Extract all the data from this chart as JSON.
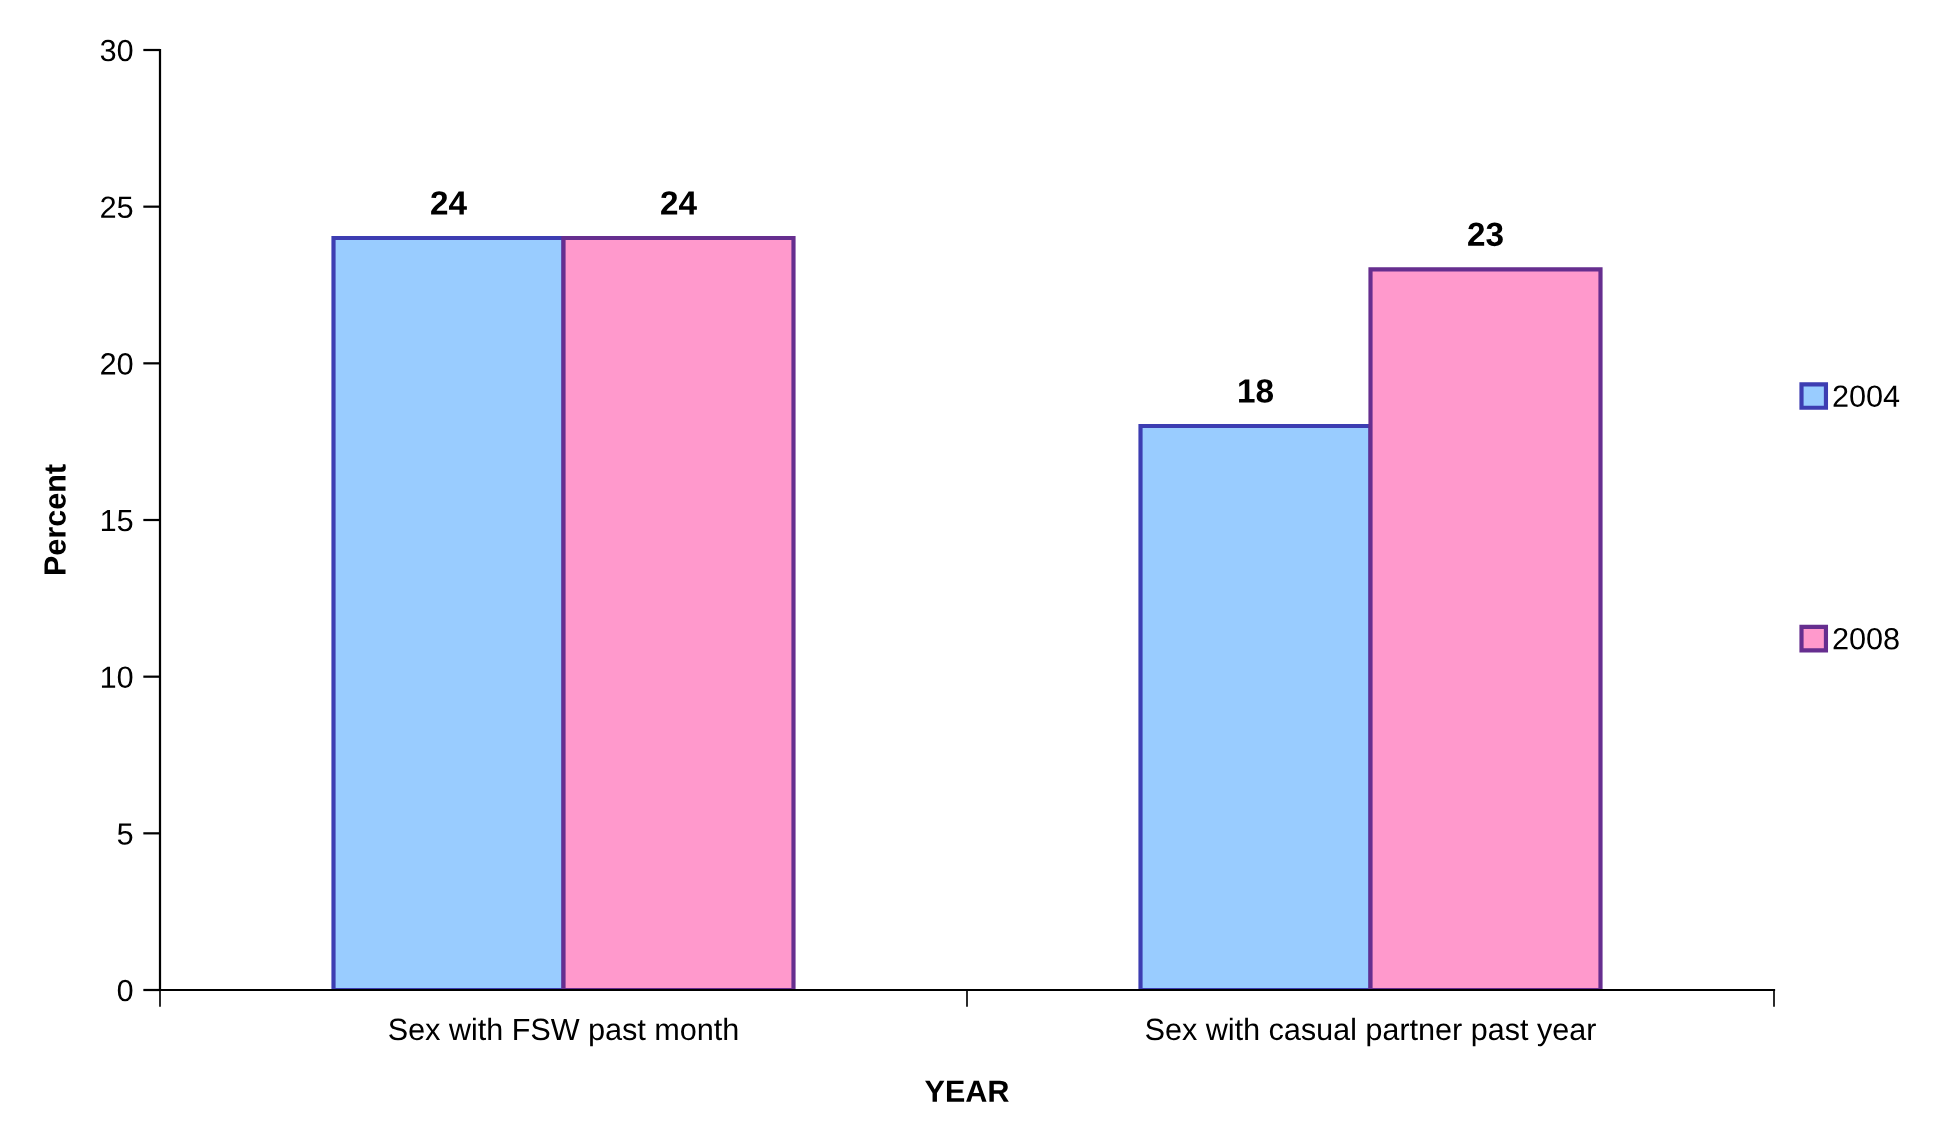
{
  "chart_data": {
    "type": "bar",
    "xlabel": "YEAR",
    "ylabel": "Percent",
    "categories": [
      "Sex with FSW past month",
      "Sex with casual partner past year"
    ],
    "series": [
      {
        "name": "2004",
        "color": "#99ccff",
        "values": [
          24,
          18
        ]
      },
      {
        "name": "2008",
        "color": "#ff99cc",
        "values": [
          24,
          23
        ]
      }
    ],
    "ylim": [
      0,
      30
    ],
    "yticks": [
      0,
      5,
      10,
      15,
      20,
      25,
      30
    ],
    "grid": false,
    "legend": "right",
    "data_labels": true
  }
}
